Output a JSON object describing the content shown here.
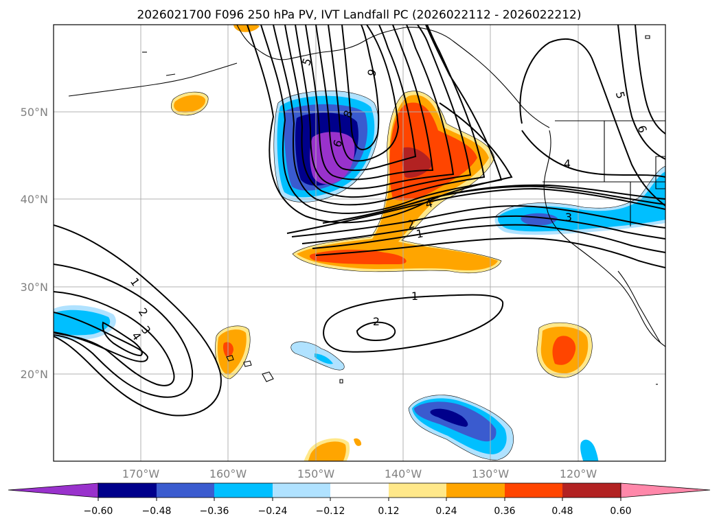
{
  "chart_data": {
    "type": "contour-map",
    "title": "2026021700 F096 250 hPa PV, IVT Landfall PC (2026022112 - 2026022212)",
    "map_extent": {
      "lon_min": -180,
      "lon_max": -110,
      "lat_min": 10,
      "lat_max": 60
    },
    "x_ticks": [
      {
        "value": -170,
        "label": "170°W"
      },
      {
        "value": -160,
        "label": "160°W"
      },
      {
        "value": -150,
        "label": "150°W"
      },
      {
        "value": -140,
        "label": "140°W"
      },
      {
        "value": -130,
        "label": "130°W"
      },
      {
        "value": -120,
        "label": "120°W"
      }
    ],
    "y_ticks": [
      {
        "value": 50,
        "label": "50°N"
      },
      {
        "value": 40,
        "label": "40°N"
      },
      {
        "value": 30,
        "label": "30°N"
      },
      {
        "value": 20,
        "label": "20°N"
      }
    ],
    "grid": true,
    "colorbar": {
      "orientation": "horizontal",
      "extend": "both",
      "levels": [
        -0.6,
        -0.48,
        -0.36,
        -0.24,
        -0.12,
        0.12,
        0.24,
        0.36,
        0.48,
        0.6
      ],
      "tick_labels": [
        "−0.60",
        "−0.48",
        "−0.36",
        "−0.24",
        "−0.12",
        "0.12",
        "0.24",
        "0.36",
        "0.48",
        "0.60"
      ],
      "colors": [
        "#9932cc",
        "#00008b",
        "#3a5bcf",
        "#00bfff",
        "#b0e2ff",
        "#ffffff",
        "#ffe88a",
        "#ffa500",
        "#ff4500",
        "#b22222",
        "#ff88aa"
      ]
    },
    "pv_contour_labels": [
      {
        "text": "5",
        "lon": -151.5,
        "lat": 56.5
      },
      {
        "text": "6",
        "lon": -144.5,
        "lat": 55.3
      },
      {
        "text": "8",
        "lon": -145.5,
        "lat": 50.0
      },
      {
        "text": "9",
        "lon": -149,
        "lat": 47.0
      },
      {
        "text": "5",
        "lon": -114.5,
        "lat": 52.0
      },
      {
        "text": "6",
        "lon": -113,
        "lat": 48.0
      },
      {
        "text": "4",
        "lon": -123.5,
        "lat": 44.0
      },
      {
        "text": "4",
        "lon": -137.5,
        "lat": 39.5
      },
      {
        "text": "3",
        "lon": -121.5,
        "lat": 38.0
      },
      {
        "text": "2",
        "lon": -139,
        "lat": 37.0
      },
      {
        "text": "1",
        "lon": -138,
        "lat": 36.0
      },
      {
        "text": "1",
        "lon": -169,
        "lat": 30.5
      },
      {
        "text": "2",
        "lon": -168,
        "lat": 27.0
      },
      {
        "text": "3",
        "lon": -167.5,
        "lat": 26.2
      },
      {
        "text": "4",
        "lon": -169,
        "lat": 25.0
      },
      {
        "text": "1",
        "lon": -139,
        "lat": 29.0
      },
      {
        "text": "2",
        "lon": -143,
        "lat": 25.8
      }
    ]
  }
}
